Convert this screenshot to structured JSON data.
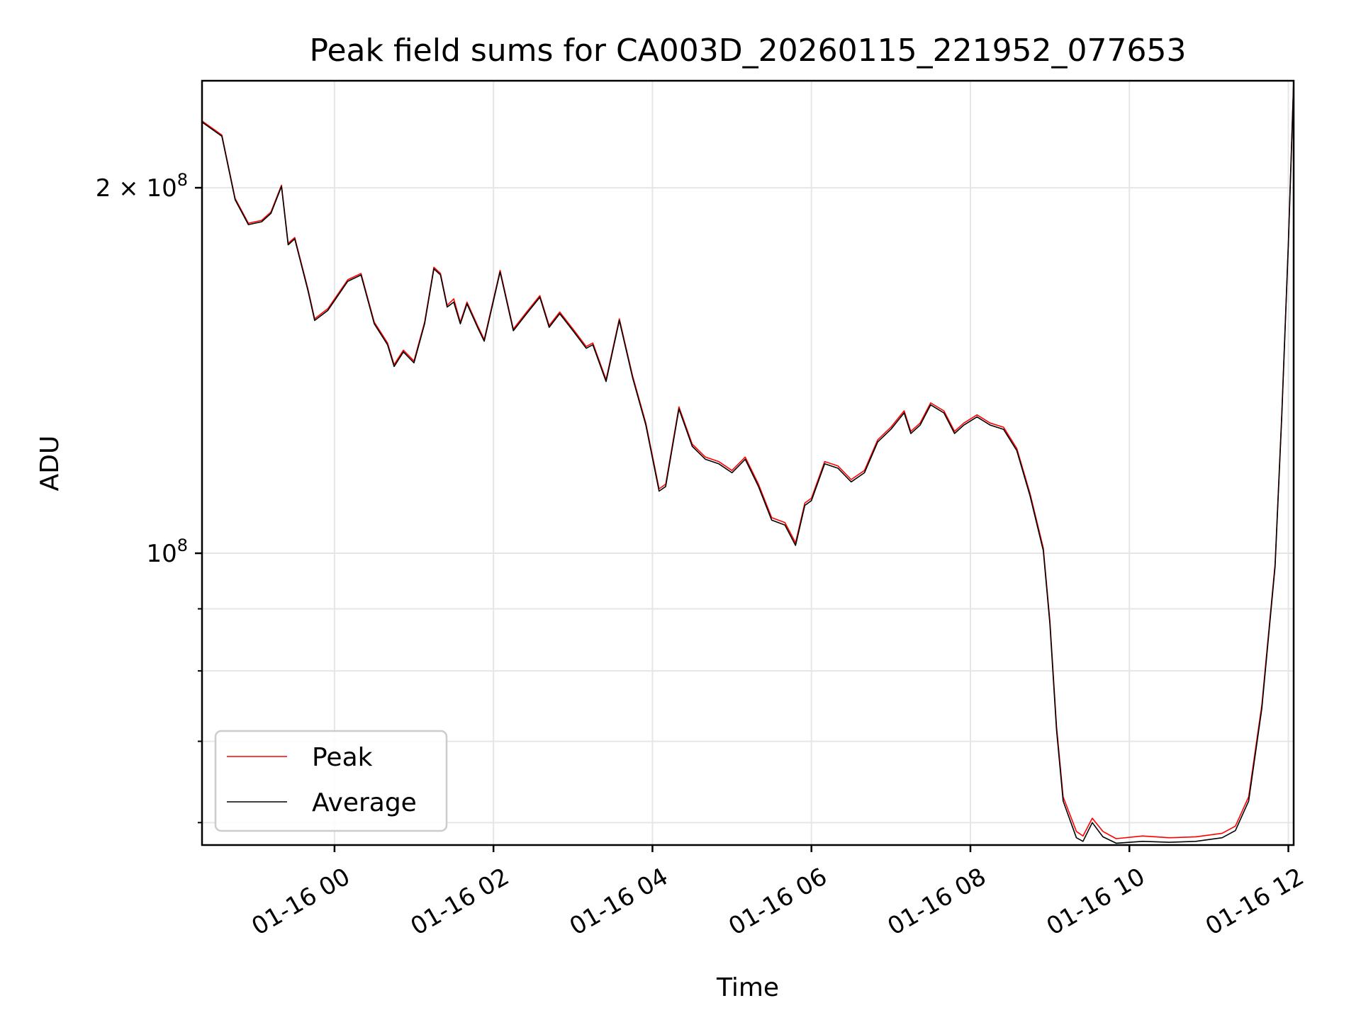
{
  "chart_data": {
    "type": "line",
    "title": "Peak field sums for CA003D_20260115_221952_077653",
    "xlabel": "Time",
    "ylabel": "ADU",
    "x_axis": {
      "kind": "datetime",
      "range": [
        "2026-01-15 22:20",
        "2026-01-16 12:04"
      ],
      "ticks": [
        {
          "value": "2026-01-16 00:00",
          "label": "01-16 00"
        },
        {
          "value": "2026-01-16 02:00",
          "label": "01-16 02"
        },
        {
          "value": "2026-01-16 04:00",
          "label": "01-16 04"
        },
        {
          "value": "2026-01-16 06:00",
          "label": "01-16 06"
        },
        {
          "value": "2026-01-16 08:00",
          "label": "01-16 08"
        },
        {
          "value": "2026-01-16 10:00",
          "label": "01-16 10"
        },
        {
          "value": "2026-01-16 12:00",
          "label": "01-16 12"
        }
      ]
    },
    "y_axis": {
      "scale": "log",
      "range": [
        57500000,
        245000000
      ],
      "major_ticks": [
        {
          "value": 100000000,
          "label_base": "10",
          "label_exp": "8"
        },
        {
          "value": 200000000,
          "label_base": "2 × 10",
          "label_exp": "8"
        }
      ],
      "minor_ticks": [
        60000000,
        70000000,
        80000000,
        90000000
      ]
    },
    "grid": true,
    "legend": {
      "placement": "lower-left"
    },
    "series": [
      {
        "name": "Peak",
        "color": "#ff0000",
        "points": [
          [
            "2026-01-15 22:20",
            227000000
          ],
          [
            "2026-01-15 22:35",
            221000000
          ],
          [
            "2026-01-15 22:45",
            196000000
          ],
          [
            "2026-01-15 22:55",
            187000000
          ],
          [
            "2026-01-15 23:05",
            188000000
          ],
          [
            "2026-01-15 23:12",
            191000000
          ],
          [
            "2026-01-15 23:20",
            201000000
          ],
          [
            "2026-01-15 23:25",
            180000000
          ],
          [
            "2026-01-15 23:30",
            182000000
          ],
          [
            "2026-01-15 23:40",
            165000000
          ],
          [
            "2026-01-15 23:45",
            156000000
          ],
          [
            "2026-01-15 23:55",
            159000000
          ],
          [
            "2026-01-16 00:10",
            168000000
          ],
          [
            "2026-01-16 00:20",
            170000000
          ],
          [
            "2026-01-16 00:30",
            155000000
          ],
          [
            "2026-01-16 00:40",
            149000000
          ],
          [
            "2026-01-16 00:45",
            143000000
          ],
          [
            "2026-01-16 00:52",
            147000000
          ],
          [
            "2026-01-16 01:00",
            144000000
          ],
          [
            "2026-01-16 01:08",
            155000000
          ],
          [
            "2026-01-16 01:15",
            172000000
          ],
          [
            "2026-01-16 01:20",
            170000000
          ],
          [
            "2026-01-16 01:25",
            160000000
          ],
          [
            "2026-01-16 01:30",
            162000000
          ],
          [
            "2026-01-16 01:35",
            155000000
          ],
          [
            "2026-01-16 01:40",
            161000000
          ],
          [
            "2026-01-16 01:48",
            154000000
          ],
          [
            "2026-01-16 01:53",
            150000000
          ],
          [
            "2026-01-16 02:05",
            171000000
          ],
          [
            "2026-01-16 02:15",
            153000000
          ],
          [
            "2026-01-16 02:25",
            158000000
          ],
          [
            "2026-01-16 02:35",
            163000000
          ],
          [
            "2026-01-16 02:42",
            154000000
          ],
          [
            "2026-01-16 02:50",
            158000000
          ],
          [
            "2026-01-16 03:00",
            153000000
          ],
          [
            "2026-01-16 03:10",
            148000000
          ],
          [
            "2026-01-16 03:15",
            149000000
          ],
          [
            "2026-01-16 03:25",
            139000000
          ],
          [
            "2026-01-16 03:35",
            156000000
          ],
          [
            "2026-01-16 03:45",
            140000000
          ],
          [
            "2026-01-16 03:55",
            128000000
          ],
          [
            "2026-01-16 04:05",
            113000000
          ],
          [
            "2026-01-16 04:10",
            114000000
          ],
          [
            "2026-01-16 04:20",
            132000000
          ],
          [
            "2026-01-16 04:30",
            123000000
          ],
          [
            "2026-01-16 04:40",
            120000000
          ],
          [
            "2026-01-16 04:50",
            119000000
          ],
          [
            "2026-01-16 05:00",
            117000000
          ],
          [
            "2026-01-16 05:10",
            120000000
          ],
          [
            "2026-01-16 05:20",
            114000000
          ],
          [
            "2026-01-16 05:30",
            107000000
          ],
          [
            "2026-01-16 05:40",
            106000000
          ],
          [
            "2026-01-16 05:48",
            102000000
          ],
          [
            "2026-01-16 05:55",
            110000000
          ],
          [
            "2026-01-16 06:00",
            111000000
          ],
          [
            "2026-01-16 06:10",
            119000000
          ],
          [
            "2026-01-16 06:20",
            118000000
          ],
          [
            "2026-01-16 06:30",
            115000000
          ],
          [
            "2026-01-16 06:40",
            117000000
          ],
          [
            "2026-01-16 06:50",
            124000000
          ],
          [
            "2026-01-16 07:00",
            127000000
          ],
          [
            "2026-01-16 07:10",
            131000000
          ],
          [
            "2026-01-16 07:15",
            126000000
          ],
          [
            "2026-01-16 07:22",
            128000000
          ],
          [
            "2026-01-16 07:30",
            133000000
          ],
          [
            "2026-01-16 07:40",
            131000000
          ],
          [
            "2026-01-16 07:48",
            126000000
          ],
          [
            "2026-01-16 07:55",
            128000000
          ],
          [
            "2026-01-16 08:05",
            130000000
          ],
          [
            "2026-01-16 08:15",
            128000000
          ],
          [
            "2026-01-16 08:25",
            127000000
          ],
          [
            "2026-01-16 08:35",
            122000000
          ],
          [
            "2026-01-16 08:45",
            112000000
          ],
          [
            "2026-01-16 08:55",
            101000000
          ],
          [
            "2026-01-16 09:00",
            88000000
          ],
          [
            "2026-01-16 09:05",
            72000000
          ],
          [
            "2026-01-16 09:10",
            63000000
          ],
          [
            "2026-01-16 09:20",
            59000000
          ],
          [
            "2026-01-16 09:25",
            58500000
          ],
          [
            "2026-01-16 09:32",
            60500000
          ],
          [
            "2026-01-16 09:40",
            59000000
          ],
          [
            "2026-01-16 09:50",
            58200000
          ],
          [
            "2026-01-16 10:10",
            58500000
          ],
          [
            "2026-01-16 10:30",
            58300000
          ],
          [
            "2026-01-16 10:50",
            58400000
          ],
          [
            "2026-01-16 11:10",
            58800000
          ],
          [
            "2026-01-16 11:20",
            59600000
          ],
          [
            "2026-01-16 11:30",
            63000000
          ],
          [
            "2026-01-16 11:40",
            75000000
          ],
          [
            "2026-01-16 11:50",
            98000000
          ],
          [
            "2026-01-16 11:55",
            130000000
          ],
          [
            "2026-01-16 12:00",
            180000000
          ],
          [
            "2026-01-16 12:04",
            245000000
          ]
        ]
      },
      {
        "name": "Average",
        "color": "#000000",
        "points": [
          [
            "2026-01-15 22:20",
            226500000
          ],
          [
            "2026-01-15 22:35",
            220500000
          ],
          [
            "2026-01-15 22:45",
            195500000
          ],
          [
            "2026-01-15 22:55",
            186500000
          ],
          [
            "2026-01-15 23:05",
            187500000
          ],
          [
            "2026-01-15 23:12",
            190500000
          ],
          [
            "2026-01-15 23:20",
            200500000
          ],
          [
            "2026-01-15 23:25",
            179500000
          ],
          [
            "2026-01-15 23:30",
            181500000
          ],
          [
            "2026-01-15 23:40",
            164500000
          ],
          [
            "2026-01-15 23:45",
            155500000
          ],
          [
            "2026-01-15 23:55",
            158500000
          ],
          [
            "2026-01-16 00:10",
            167500000
          ],
          [
            "2026-01-16 00:20",
            169500000
          ],
          [
            "2026-01-16 00:30",
            154500000
          ],
          [
            "2026-01-16 00:40",
            148500000
          ],
          [
            "2026-01-16 00:45",
            142500000
          ],
          [
            "2026-01-16 00:52",
            146500000
          ],
          [
            "2026-01-16 01:00",
            143500000
          ],
          [
            "2026-01-16 01:08",
            154500000
          ],
          [
            "2026-01-16 01:15",
            171500000
          ],
          [
            "2026-01-16 01:20",
            169500000
          ],
          [
            "2026-01-16 01:25",
            159500000
          ],
          [
            "2026-01-16 01:30",
            161000000
          ],
          [
            "2026-01-16 01:35",
            154500000
          ],
          [
            "2026-01-16 01:40",
            160500000
          ],
          [
            "2026-01-16 01:48",
            153500000
          ],
          [
            "2026-01-16 01:53",
            149500000
          ],
          [
            "2026-01-16 02:05",
            170500000
          ],
          [
            "2026-01-16 02:15",
            152500000
          ],
          [
            "2026-01-16 02:25",
            157500000
          ],
          [
            "2026-01-16 02:35",
            162500000
          ],
          [
            "2026-01-16 02:42",
            153500000
          ],
          [
            "2026-01-16 02:50",
            157500000
          ],
          [
            "2026-01-16 03:00",
            152500000
          ],
          [
            "2026-01-16 03:10",
            147500000
          ],
          [
            "2026-01-16 03:15",
            148500000
          ],
          [
            "2026-01-16 03:25",
            138500000
          ],
          [
            "2026-01-16 03:35",
            155500000
          ],
          [
            "2026-01-16 03:45",
            139500000
          ],
          [
            "2026-01-16 03:55",
            127500000
          ],
          [
            "2026-01-16 04:05",
            112500000
          ],
          [
            "2026-01-16 04:10",
            113500000
          ],
          [
            "2026-01-16 04:20",
            131500000
          ],
          [
            "2026-01-16 04:30",
            122500000
          ],
          [
            "2026-01-16 04:40",
            119500000
          ],
          [
            "2026-01-16 04:50",
            118500000
          ],
          [
            "2026-01-16 05:00",
            116500000
          ],
          [
            "2026-01-16 05:10",
            119500000
          ],
          [
            "2026-01-16 05:20",
            113500000
          ],
          [
            "2026-01-16 05:30",
            106500000
          ],
          [
            "2026-01-16 05:40",
            105500000
          ],
          [
            "2026-01-16 05:48",
            101500000
          ],
          [
            "2026-01-16 05:55",
            109500000
          ],
          [
            "2026-01-16 06:00",
            110500000
          ],
          [
            "2026-01-16 06:10",
            118500000
          ],
          [
            "2026-01-16 06:20",
            117500000
          ],
          [
            "2026-01-16 06:30",
            114500000
          ],
          [
            "2026-01-16 06:40",
            116500000
          ],
          [
            "2026-01-16 06:50",
            123500000
          ],
          [
            "2026-01-16 07:00",
            126500000
          ],
          [
            "2026-01-16 07:10",
            130500000
          ],
          [
            "2026-01-16 07:15",
            125500000
          ],
          [
            "2026-01-16 07:22",
            127500000
          ],
          [
            "2026-01-16 07:30",
            132500000
          ],
          [
            "2026-01-16 07:40",
            130500000
          ],
          [
            "2026-01-16 07:48",
            125500000
          ],
          [
            "2026-01-16 07:55",
            127500000
          ],
          [
            "2026-01-16 08:05",
            129500000
          ],
          [
            "2026-01-16 08:15",
            127500000
          ],
          [
            "2026-01-16 08:25",
            126500000
          ],
          [
            "2026-01-16 08:35",
            121500000
          ],
          [
            "2026-01-16 08:45",
            111500000
          ],
          [
            "2026-01-16 08:55",
            100500000
          ],
          [
            "2026-01-16 09:00",
            87500000
          ],
          [
            "2026-01-16 09:05",
            71500000
          ],
          [
            "2026-01-16 09:10",
            62500000
          ],
          [
            "2026-01-16 09:20",
            58300000
          ],
          [
            "2026-01-16 09:25",
            57900000
          ],
          [
            "2026-01-16 09:32",
            60000000
          ],
          [
            "2026-01-16 09:40",
            58400000
          ],
          [
            "2026-01-16 09:50",
            57700000
          ],
          [
            "2026-01-16 10:10",
            57900000
          ],
          [
            "2026-01-16 10:30",
            57800000
          ],
          [
            "2026-01-16 10:50",
            57900000
          ],
          [
            "2026-01-16 11:10",
            58300000
          ],
          [
            "2026-01-16 11:20",
            59100000
          ],
          [
            "2026-01-16 11:30",
            62500000
          ],
          [
            "2026-01-16 11:40",
            74500000
          ],
          [
            "2026-01-16 11:50",
            97500000
          ],
          [
            "2026-01-16 11:55",
            129500000
          ],
          [
            "2026-01-16 12:00",
            179500000
          ],
          [
            "2026-01-16 12:04",
            244500000
          ]
        ]
      }
    ]
  }
}
